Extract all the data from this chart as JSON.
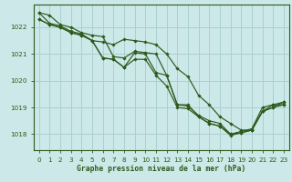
{
  "xlabel": "Graphe pression niveau de la mer (hPa)",
  "ylim": [
    1017.4,
    1022.85
  ],
  "xlim": [
    -0.5,
    23.5
  ],
  "yticks": [
    1018,
    1019,
    1020,
    1021,
    1022
  ],
  "xticks": [
    0,
    1,
    2,
    3,
    4,
    5,
    6,
    7,
    8,
    9,
    10,
    11,
    12,
    13,
    14,
    15,
    16,
    17,
    18,
    19,
    20,
    21,
    22,
    23
  ],
  "line_color": "#2d5a1b",
  "bg_color": "#cce8e8",
  "grid_color": "#aad0d0",
  "lines": [
    {
      "x": [
        0,
        1,
        2,
        3,
        4,
        5,
        6,
        7,
        8,
        9,
        10,
        11,
        12,
        13,
        14,
        15,
        16,
        17,
        18,
        19,
        20,
        21,
        22,
        23
      ],
      "y": [
        1022.55,
        1022.15,
        1022.05,
        1021.85,
        1021.75,
        1021.5,
        1021.45,
        1021.35,
        1021.55,
        1021.5,
        1021.45,
        1021.35,
        1021.0,
        1020.45,
        1020.15,
        1019.45,
        1019.1,
        1018.65,
        1018.4,
        1018.15,
        1018.15,
        1018.85,
        1019.1,
        1019.2
      ]
    },
    {
      "x": [
        0,
        1,
        2,
        3,
        4,
        5,
        6,
        7,
        8,
        9,
        10,
        11,
        12,
        13,
        14,
        15,
        16,
        17,
        18,
        19,
        20,
        21,
        22,
        23
      ],
      "y": [
        1022.55,
        1022.45,
        1022.1,
        1022.0,
        1021.8,
        1021.7,
        1021.65,
        1020.9,
        1020.85,
        1021.1,
        1021.05,
        1021.0,
        1020.2,
        1019.1,
        1019.1,
        1018.65,
        1018.4,
        1018.3,
        1018.0,
        1018.05,
        1018.15,
        1018.85,
        1019.0,
        1019.2
      ]
    },
    {
      "x": [
        0,
        1,
        2,
        3,
        4,
        5,
        6,
        7,
        8,
        9,
        10,
        11,
        12,
        13,
        14,
        15,
        16,
        17,
        18,
        19,
        20,
        21,
        22,
        23
      ],
      "y": [
        1022.3,
        1022.1,
        1022.0,
        1021.8,
        1021.7,
        1021.5,
        1020.85,
        1020.8,
        1020.5,
        1021.05,
        1021.0,
        1020.3,
        1020.2,
        1019.1,
        1019.05,
        1018.7,
        1018.5,
        1018.4,
        1018.0,
        1018.1,
        1018.2,
        1019.0,
        1019.1,
        1019.1
      ]
    },
    {
      "x": [
        0,
        1,
        2,
        3,
        4,
        5,
        6,
        7,
        8,
        9,
        10,
        11,
        12,
        13,
        14,
        15,
        16,
        17,
        18,
        19,
        20,
        21,
        22,
        23
      ],
      "y": [
        1022.3,
        1022.1,
        1022.0,
        1021.8,
        1021.7,
        1021.5,
        1020.85,
        1020.8,
        1020.5,
        1020.8,
        1020.8,
        1020.2,
        1019.8,
        1019.0,
        1018.95,
        1018.65,
        1018.4,
        1018.3,
        1017.95,
        1018.05,
        1018.15,
        1018.85,
        1019.0,
        1019.1
      ]
    }
  ]
}
